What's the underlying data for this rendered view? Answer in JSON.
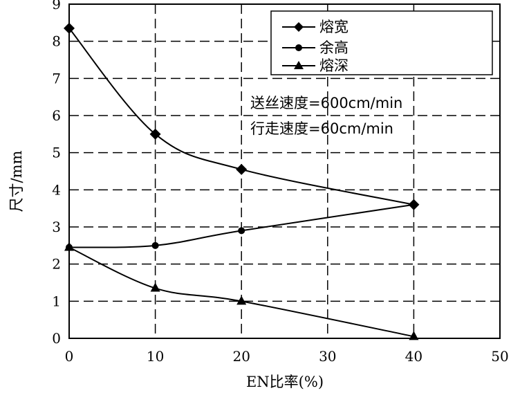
{
  "chart_data": {
    "type": "line",
    "title": "",
    "xlabel": "EN比率(%)",
    "ylabel": "尺寸/mm",
    "xlim": [
      0,
      50
    ],
    "ylim": [
      0,
      9
    ],
    "x_ticks": [
      0,
      10,
      20,
      30,
      40,
      50
    ],
    "y_ticks": [
      0,
      1,
      2,
      3,
      4,
      5,
      6,
      7,
      8,
      9
    ],
    "grid": "dashed",
    "legend_position": "top-right",
    "annotations": [
      "送丝速度=600cm/min",
      "行走速度=60cm/min"
    ],
    "series": [
      {
        "name": "熔宽",
        "marker": "diamond",
        "x": [
          0,
          10,
          20,
          40
        ],
        "values": [
          8.35,
          5.5,
          4.55,
          3.6
        ]
      },
      {
        "name": "余高",
        "marker": "circle",
        "x": [
          0,
          10,
          20,
          40
        ],
        "values": [
          2.45,
          2.5,
          2.9,
          3.6
        ]
      },
      {
        "name": "熔深",
        "marker": "triangle",
        "x": [
          0,
          10,
          20,
          40
        ],
        "values": [
          2.45,
          1.35,
          1.0,
          0.05
        ]
      }
    ]
  }
}
